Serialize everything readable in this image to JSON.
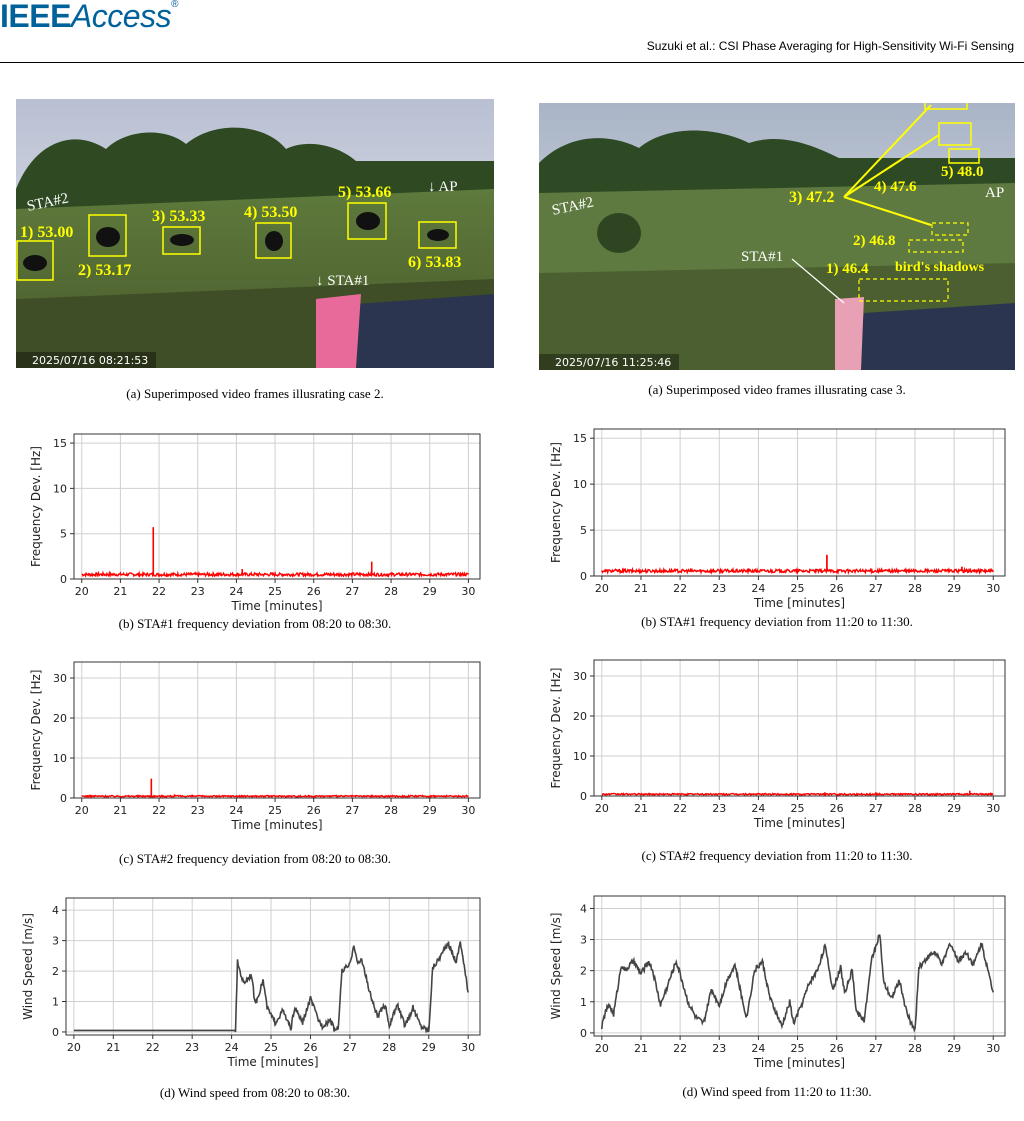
{
  "header": {
    "logo_bold": "IEEE",
    "logo_italic": "Access",
    "logo_mark": "®",
    "running_head": "Suzuki et al.: CSI Phase Averaging for High-Sensitivity Wi-Fi Sensing"
  },
  "photos": {
    "left": {
      "timestamp": "2025/07/16 08:21:53",
      "labels": [
        "1) 53.00",
        "2) 53.17",
        "3) 53.33",
        "4) 53.50",
        "5) 53.66",
        "6) 53.83"
      ],
      "sta2": "STA#2",
      "sta1": "↓ STA#1",
      "ap": "↓ AP"
    },
    "right": {
      "timestamp": "2025/07/16 11:25:46",
      "labels": [
        "1) 46.4",
        "2) 46.8",
        "3) 47.2",
        "4) 47.6",
        "5) 48.0"
      ],
      "sta2": "STA#2",
      "sta1": "STA#1",
      "ap": "AP",
      "shadow_label": "bird's shadows"
    }
  },
  "captions": {
    "l_a": "(a) Superimposed video frames illusrating case 2.",
    "r_a": "(a) Superimposed video frames illusrating case 3.",
    "l_b": "(b) STA#1 frequency deviation from 08:20 to 08:30.",
    "r_b": "(b) STA#1 frequency deviation from 11:20 to 11:30.",
    "l_c": "(c) STA#2 frequency deviation from 08:20 to 08:30.",
    "r_c": "(c) STA#2 frequency deviation from 11:20 to 11:30.",
    "l_d": "(d) Wind speed from 08:20 to 08:30.",
    "r_d": "(d) Wind speed from 11:20 to 11:30."
  },
  "chart_data": [
    {
      "id": "l_b",
      "type": "line",
      "xlabel": "Time [minutes]",
      "ylabel": "Frequency Dev. [Hz]",
      "xlim": [
        19.8,
        30.3
      ],
      "ylim": [
        0,
        16
      ],
      "xticks": [
        20,
        21,
        22,
        23,
        24,
        25,
        26,
        27,
        28,
        29,
        30
      ],
      "yticks": [
        0,
        5,
        10,
        15
      ],
      "grid": true,
      "color": "#ff0000",
      "baseline": 0.5,
      "spikes": [
        [
          21.85,
          5.7
        ],
        [
          24.15,
          1.1
        ],
        [
          27.5,
          1.9
        ]
      ]
    },
    {
      "id": "r_b",
      "type": "line",
      "xlabel": "Time [minutes]",
      "ylabel": "Frequency Dev. [Hz]",
      "xlim": [
        19.8,
        30.3
      ],
      "ylim": [
        0,
        16
      ],
      "xticks": [
        20,
        21,
        22,
        23,
        24,
        25,
        26,
        27,
        28,
        29,
        30
      ],
      "yticks": [
        0,
        5,
        10,
        15
      ],
      "grid": true,
      "color": "#ff0000",
      "baseline": 0.55,
      "spikes": [
        [
          25.75,
          2.3
        ],
        [
          29.2,
          1.0
        ]
      ]
    },
    {
      "id": "l_c",
      "type": "line",
      "xlabel": "Time [minutes]",
      "ylabel": "Frequency Dev. [Hz]",
      "xlim": [
        19.8,
        30.3
      ],
      "ylim": [
        0,
        34
      ],
      "xticks": [
        20,
        21,
        22,
        23,
        24,
        25,
        26,
        27,
        28,
        29,
        30
      ],
      "yticks": [
        0,
        10,
        20,
        30
      ],
      "grid": true,
      "color": "#ff0000",
      "baseline": 0.45,
      "spikes": [
        [
          21.8,
          4.8
        ],
        [
          22.4,
          0.9
        ]
      ]
    },
    {
      "id": "r_c",
      "type": "line",
      "xlabel": "Time [minutes]",
      "ylabel": "Frequency Dev. [Hz]",
      "xlim": [
        19.8,
        30.3
      ],
      "ylim": [
        0,
        34
      ],
      "xticks": [
        20,
        21,
        22,
        23,
        24,
        25,
        26,
        27,
        28,
        29,
        30
      ],
      "yticks": [
        0,
        10,
        20,
        30
      ],
      "grid": true,
      "color": "#ff0000",
      "baseline": 0.45,
      "spikes": [
        [
          25.7,
          0.9
        ],
        [
          27.0,
          0.9
        ],
        [
          29.4,
          1.3
        ]
      ]
    },
    {
      "id": "l_d",
      "type": "line",
      "xlabel": "Time [minutes]",
      "ylabel": "Wind Speed [m/s]",
      "xlim": [
        19.8,
        30.3
      ],
      "ylim": [
        -0.1,
        4.4
      ],
      "xticks": [
        20,
        21,
        22,
        23,
        24,
        25,
        26,
        27,
        28,
        29,
        30
      ],
      "yticks": [
        0,
        1,
        2,
        3,
        4
      ],
      "grid": true,
      "color": "#444444",
      "x": [
        20.0,
        24.1,
        24.15,
        24.3,
        24.5,
        24.6,
        24.8,
        24.9,
        25.1,
        25.3,
        25.5,
        25.6,
        25.8,
        26.0,
        26.2,
        26.3,
        26.5,
        26.6,
        26.7,
        26.8,
        27.0,
        27.1,
        27.2,
        27.3,
        27.5,
        27.7,
        27.9,
        28.0,
        28.2,
        28.4,
        28.6,
        28.8,
        29.0,
        29.1,
        29.3,
        29.5,
        29.7,
        29.8,
        30.0
      ],
      "values": [
        0.05,
        0.05,
        2.3,
        1.6,
        1.9,
        0.9,
        1.7,
        0.8,
        0.3,
        0.7,
        0.1,
        0.8,
        0.3,
        1.1,
        0.4,
        0.2,
        0.4,
        0.1,
        0.1,
        2.0,
        2.2,
        2.9,
        2.2,
        2.4,
        1.3,
        0.5,
        0.9,
        0.2,
        0.9,
        0.2,
        0.8,
        0.2,
        0.05,
        2.1,
        2.5,
        2.9,
        2.3,
        3.0,
        1.3
      ]
    },
    {
      "id": "r_d",
      "type": "line",
      "xlabel": "Time [minutes]",
      "ylabel": "Wind Speed [m/s]",
      "xlim": [
        19.8,
        30.3
      ],
      "ylim": [
        -0.1,
        4.4
      ],
      "xticks": [
        20,
        21,
        22,
        23,
        24,
        25,
        26,
        27,
        28,
        29,
        30
      ],
      "yticks": [
        0,
        1,
        2,
        3,
        4
      ],
      "grid": true,
      "color": "#444444",
      "x": [
        20.0,
        20.1,
        20.2,
        20.3,
        20.5,
        20.6,
        20.8,
        21.0,
        21.2,
        21.3,
        21.5,
        21.7,
        21.9,
        22.0,
        22.2,
        22.4,
        22.6,
        22.8,
        23.0,
        23.2,
        23.4,
        23.6,
        23.7,
        23.9,
        24.1,
        24.3,
        24.6,
        24.8,
        24.9,
        25.1,
        25.3,
        25.5,
        25.7,
        25.9,
        26.1,
        26.2,
        26.4,
        26.5,
        26.7,
        26.9,
        27.1,
        27.2,
        27.4,
        27.6,
        27.8,
        28.0,
        28.1,
        28.3,
        28.5,
        28.7,
        28.9,
        29.1,
        29.3,
        29.5,
        29.7,
        29.9,
        30.0
      ],
      "values": [
        0.2,
        0.7,
        0.9,
        0.6,
        2.2,
        2.0,
        2.3,
        1.9,
        2.3,
        2.0,
        0.9,
        1.6,
        2.3,
        1.9,
        1.0,
        0.5,
        0.3,
        1.4,
        0.9,
        1.7,
        2.2,
        1.0,
        0.5,
        2.0,
        2.3,
        1.1,
        0.2,
        1.0,
        0.3,
        0.9,
        1.6,
        2.0,
        2.8,
        1.4,
        2.1,
        1.3,
        2.0,
        0.7,
        0.4,
        2.4,
        3.2,
        1.6,
        1.1,
        1.7,
        0.6,
        0.05,
        2.1,
        2.4,
        2.6,
        2.2,
        2.9,
        2.3,
        2.6,
        2.2,
        2.9,
        1.8,
        1.3
      ]
    }
  ]
}
